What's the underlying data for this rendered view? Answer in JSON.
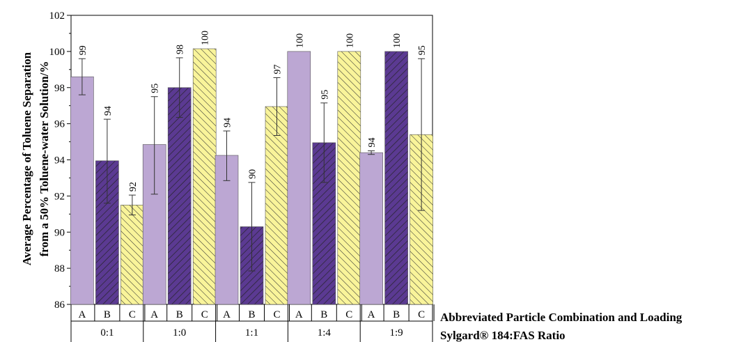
{
  "colors": {
    "A": "#bca7d3",
    "B": "#5b3a92",
    "C": "#f9f49a",
    "hatch_B": "#222222",
    "hatch_C": "#333333",
    "error_bar": "#333333"
  },
  "chart_data": {
    "type": "bar",
    "ylabel_line1": "Average Percentage of Toluene Separation",
    "ylabel_line2": "from a 50% Toluene-water Solution/%",
    "row1_title": "Abbreviated Particle Combination and Loading",
    "row2_title": "Sylgard® 184:FAS Ratio",
    "ylim": [
      86,
      102
    ],
    "yticks": [
      86,
      88,
      90,
      92,
      94,
      96,
      98,
      100,
      102
    ],
    "ytick_labels": [
      "86",
      "88",
      "90",
      "92",
      "94",
      "96",
      "98",
      "100",
      "102"
    ],
    "grid": false,
    "legend": "none",
    "groups": [
      {
        "label": "0:1",
        "bars": [
          {
            "cat": "A",
            "value": 98.6,
            "err_low": 97.6,
            "err_high": 99.6,
            "label": "99",
            "pattern": "solid"
          },
          {
            "cat": "B",
            "value": 93.95,
            "err_low": 91.6,
            "err_high": 96.25,
            "label": "94",
            "pattern": "forward"
          },
          {
            "cat": "C",
            "value": 91.5,
            "err_low": 90.95,
            "err_high": 92.05,
            "label": "92",
            "pattern": "back"
          }
        ]
      },
      {
        "label": "1:0",
        "bars": [
          {
            "cat": "A",
            "value": 94.85,
            "err_low": 92.1,
            "err_high": 97.5,
            "label": "95",
            "pattern": "solid"
          },
          {
            "cat": "B",
            "value": 98.0,
            "err_low": 96.35,
            "err_high": 99.65,
            "label": "98",
            "pattern": "forward"
          },
          {
            "cat": "C",
            "value": 100.15,
            "err_low": null,
            "err_high": null,
            "label": "100",
            "pattern": "back"
          }
        ]
      },
      {
        "label": "1:1",
        "bars": [
          {
            "cat": "A",
            "value": 94.25,
            "err_low": 92.85,
            "err_high": 95.6,
            "label": "94",
            "pattern": "solid"
          },
          {
            "cat": "B",
            "value": 90.3,
            "err_low": 87.85,
            "err_high": 92.75,
            "label": "90",
            "pattern": "forward"
          },
          {
            "cat": "C",
            "value": 96.95,
            "err_low": 95.35,
            "err_high": 98.55,
            "label": "97",
            "pattern": "back"
          }
        ]
      },
      {
        "label": "1:4",
        "bars": [
          {
            "cat": "A",
            "value": 100.0,
            "err_low": null,
            "err_high": null,
            "label": "100",
            "pattern": "solid"
          },
          {
            "cat": "B",
            "value": 94.95,
            "err_low": 92.75,
            "err_high": 97.15,
            "label": "95",
            "pattern": "forward"
          },
          {
            "cat": "C",
            "value": 100.0,
            "err_low": null,
            "err_high": null,
            "label": "100",
            "pattern": "back"
          }
        ]
      },
      {
        "label": "1:9",
        "bars": [
          {
            "cat": "A",
            "value": 94.4,
            "err_low": 94.3,
            "err_high": 94.5,
            "label": "94",
            "pattern": "solid"
          },
          {
            "cat": "B",
            "value": 100.0,
            "err_low": null,
            "err_high": null,
            "label": "100",
            "pattern": "forward"
          },
          {
            "cat": "C",
            "value": 95.4,
            "err_low": 91.2,
            "err_high": 99.6,
            "label": "95",
            "pattern": "back"
          }
        ]
      }
    ]
  }
}
